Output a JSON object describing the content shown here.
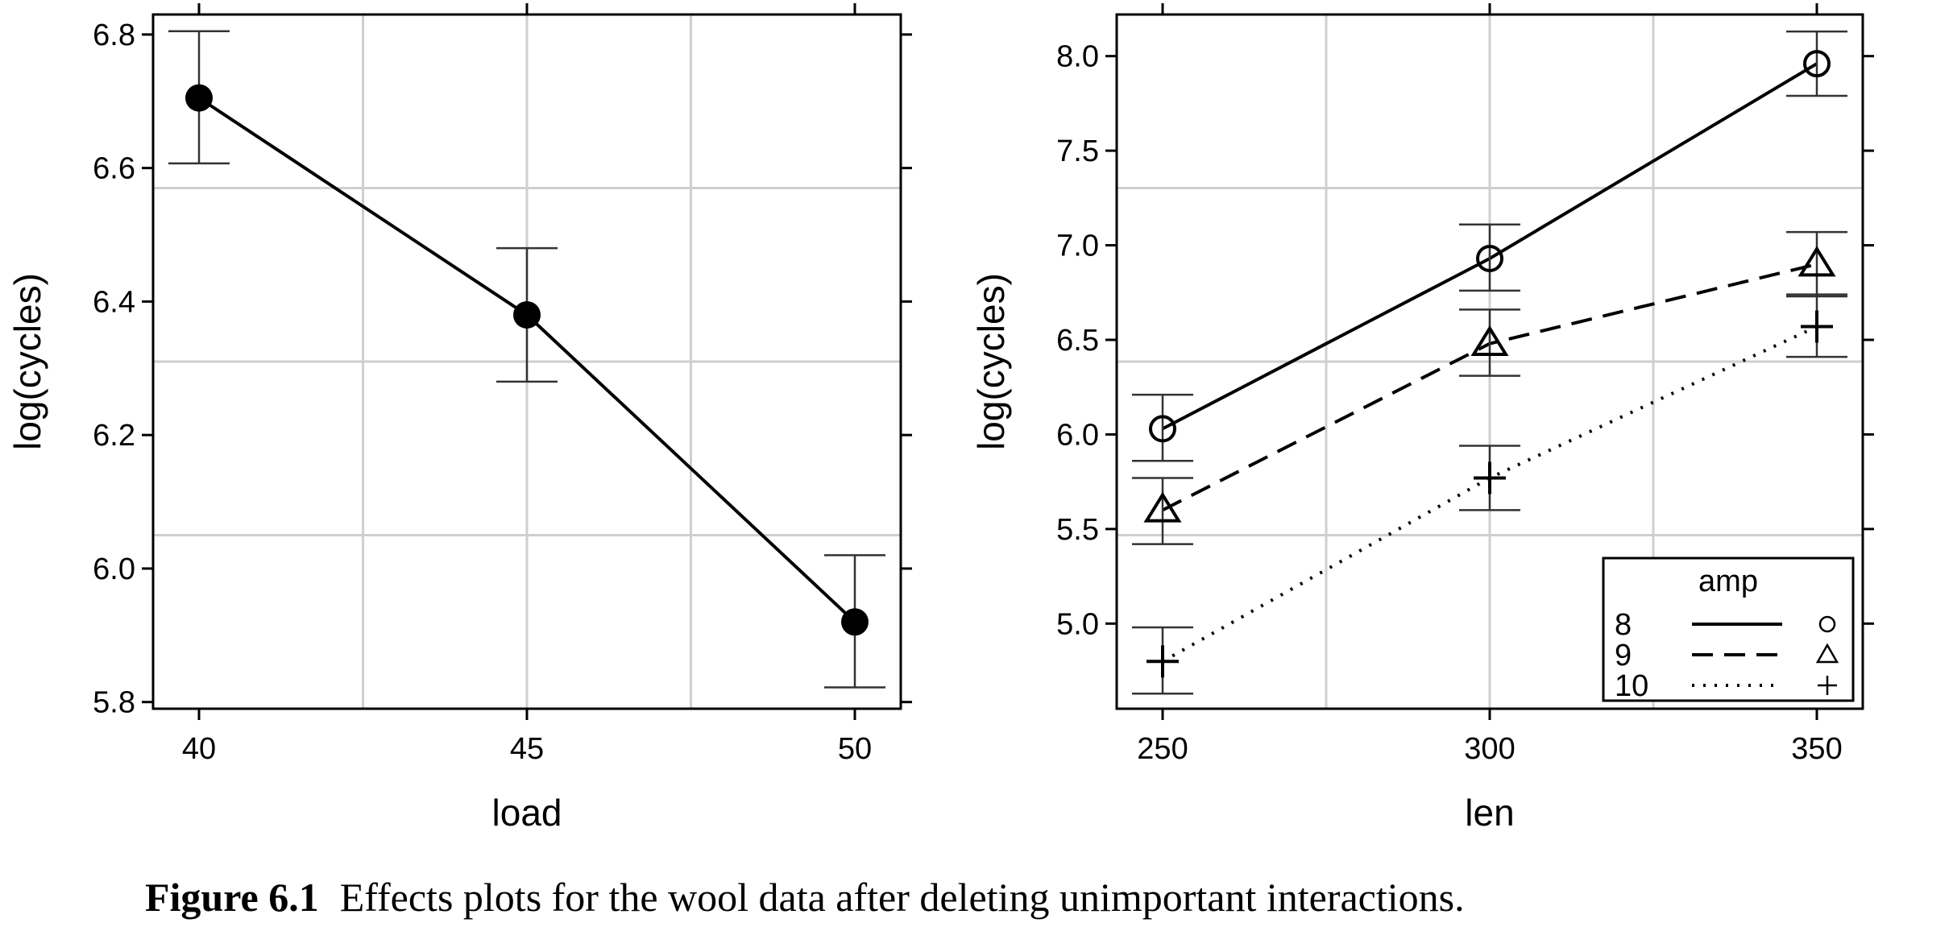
{
  "chart_data": [
    {
      "type": "line",
      "xlabel": "load",
      "ylabel": "log(cycles)",
      "x": [
        40,
        45,
        50
      ],
      "xticks": [
        "40",
        "45",
        "50"
      ],
      "ylim": [
        5.79,
        6.83
      ],
      "yticks": [
        "5.8",
        "6.0",
        "6.2",
        "6.4",
        "6.6",
        "6.8"
      ],
      "grid": true,
      "series": [
        {
          "values": [
            6.705,
            6.38,
            5.92
          ],
          "lower": [
            6.607,
            6.28,
            5.822
          ],
          "upper": [
            6.805,
            6.48,
            6.02
          ],
          "line": "solid",
          "marker": "filled-circle"
        }
      ]
    },
    {
      "type": "line",
      "xlabel": "len",
      "ylabel": "log(cycles)",
      "x": [
        250,
        300,
        350
      ],
      "xticks": [
        "250",
        "300",
        "350"
      ],
      "ylim": [
        4.55,
        8.22
      ],
      "yticks": [
        "5.0",
        "5.5",
        "6.0",
        "6.5",
        "7.0",
        "7.5",
        "8.0"
      ],
      "grid": true,
      "legend": {
        "title": "amp",
        "position": "bottom-right"
      },
      "series": [
        {
          "name": "8",
          "values": [
            6.03,
            6.93,
            7.96
          ],
          "lower": [
            5.86,
            6.76,
            7.79
          ],
          "upper": [
            6.21,
            7.11,
            8.13
          ],
          "line": "solid",
          "marker": "circle"
        },
        {
          "name": "9",
          "values": [
            5.6,
            6.48,
            6.9
          ],
          "lower": [
            5.42,
            6.31,
            6.73
          ],
          "upper": [
            5.77,
            6.66,
            7.07
          ],
          "line": "dashed",
          "marker": "triangle"
        },
        {
          "name": "10",
          "values": [
            4.8,
            5.77,
            6.57
          ],
          "lower": [
            4.63,
            5.6,
            6.41
          ],
          "upper": [
            4.98,
            5.94,
            6.74
          ],
          "line": "dotted",
          "marker": "plus"
        }
      ]
    }
  ],
  "caption": {
    "label": "Figure 6.1",
    "text": "Effects plots for the wool data after deleting unimportant interactions."
  }
}
